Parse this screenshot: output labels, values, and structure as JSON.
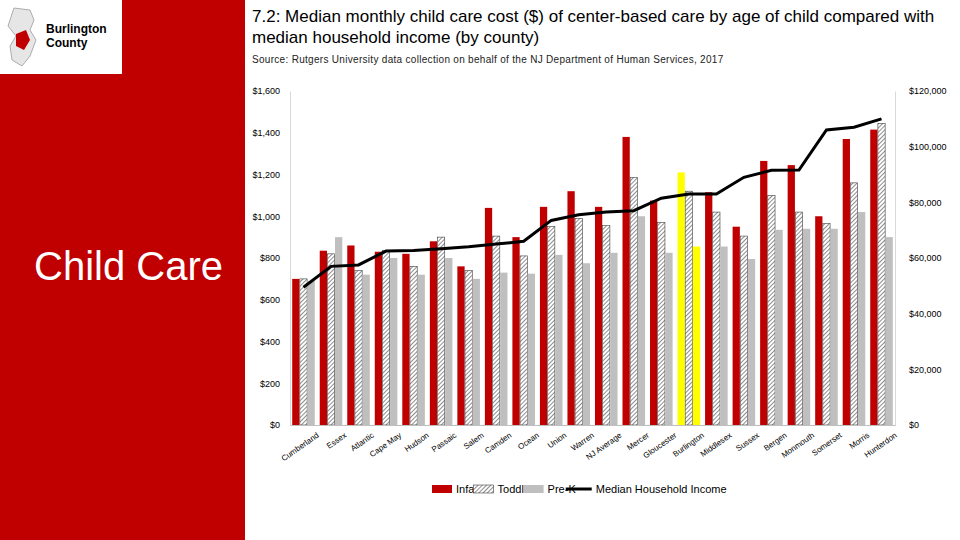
{
  "page": {
    "badge": "Burlington County",
    "heading": "Child Care"
  },
  "chart_data": {
    "type": "bar",
    "title": "7.2: Median monthly child care cost ($) of center-based care by age of child compared with median household income (by county)",
    "subtitle": "Source: Rutgers University data collection on behalf of the NJ Department of Human Services, 2017",
    "categories": [
      "Cumberland",
      "Essex",
      "Atlantic",
      "Cape May",
      "Hudson",
      "Passaic",
      "Salem",
      "Camden",
      "Ocean",
      "Union",
      "Warren",
      "NJ Average",
      "Mercer",
      "Gloucester",
      "Burlington",
      "Middlesex",
      "Sussex",
      "Bergen",
      "Monmouth",
      "Somerset",
      "Morris",
      "Hunterdon"
    ],
    "series": [
      {
        "name": "Infant",
        "type": "bar",
        "color": "#c00000",
        "colors": [
          "#c00000",
          "#c00000",
          "#c00000",
          "#c00000",
          "#c00000",
          "#c00000",
          "#c00000",
          "#c00000",
          "#c00000",
          "#c00000",
          "#c00000",
          "#c00000",
          "#c00000",
          "#c00000",
          "#ffff00",
          "#c00000",
          "#c00000",
          "#c00000",
          "#c00000",
          "#c00000",
          "#c00000",
          "#c00000"
        ],
        "values": [
          700,
          835,
          860,
          830,
          820,
          880,
          760,
          1040,
          900,
          1045,
          1120,
          1045,
          1380,
          1075,
          1210,
          1115,
          950,
          1265,
          1245,
          1000,
          1370,
          1415
        ]
      },
      {
        "name": "Toddler",
        "type": "bar",
        "color": "#404040",
        "line_style": "hatched",
        "values": [
          700,
          820,
          740,
          835,
          760,
          900,
          740,
          905,
          810,
          950,
          990,
          955,
          1185,
          970,
          1120,
          1020,
          905,
          1100,
          1020,
          965,
          1160,
          1445
        ]
      },
      {
        "name": "Pre-K",
        "type": "bar",
        "color": "#bfbfbf",
        "colors": [
          "#bfbfbf",
          "#bfbfbf",
          "#bfbfbf",
          "#bfbfbf",
          "#bfbfbf",
          "#bfbfbf",
          "#bfbfbf",
          "#bfbfbf",
          "#bfbfbf",
          "#bfbfbf",
          "#bfbfbf",
          "#bfbfbf",
          "#bfbfbf",
          "#bfbfbf",
          "#ffff00",
          "#bfbfbf",
          "#bfbfbf",
          "#bfbfbf",
          "#bfbfbf",
          "#bfbfbf",
          "#bfbfbf",
          "#bfbfbf"
        ],
        "values": [
          690,
          900,
          720,
          800,
          720,
          800,
          700,
          730,
          725,
          815,
          775,
          825,
          1000,
          825,
          855,
          855,
          795,
          935,
          940,
          940,
          1020,
          900
        ]
      },
      {
        "name": "Median Household Income",
        "type": "line",
        "axis": "y2",
        "color": "#000000",
        "values": [
          49500,
          57000,
          57500,
          62500,
          62700,
          63300,
          64000,
          65000,
          66000,
          73500,
          75500,
          76500,
          77000,
          81500,
          83000,
          83000,
          89000,
          91500,
          91600,
          106000,
          107000,
          110000
        ]
      }
    ],
    "ylim": [
      0,
      1600
    ],
    "yticks": [
      {
        "value": 0,
        "label": "$0"
      },
      {
        "value": 200,
        "label": "$200"
      },
      {
        "value": 400,
        "label": "$400"
      },
      {
        "value": 600,
        "label": "$600"
      },
      {
        "value": 800,
        "label": "$800"
      },
      {
        "value": 1000,
        "label": "$1,000"
      },
      {
        "value": 1200,
        "label": "$1,200"
      },
      {
        "value": 1400,
        "label": "$1,400"
      },
      {
        "value": 1600,
        "label": "$1,600"
      }
    ],
    "y2lim": [
      0,
      120000
    ],
    "y2ticks": [
      {
        "value": 0,
        "label": "$0"
      },
      {
        "value": 20000,
        "label": "$20,000"
      },
      {
        "value": 40000,
        "label": "$40,000"
      },
      {
        "value": 60000,
        "label": "$60,000"
      },
      {
        "value": 80000,
        "label": "$80,000"
      },
      {
        "value": 100000,
        "label": "$100,000"
      },
      {
        "value": 120000,
        "label": "$120,000"
      }
    ],
    "grid": false,
    "legend": "bottom"
  }
}
